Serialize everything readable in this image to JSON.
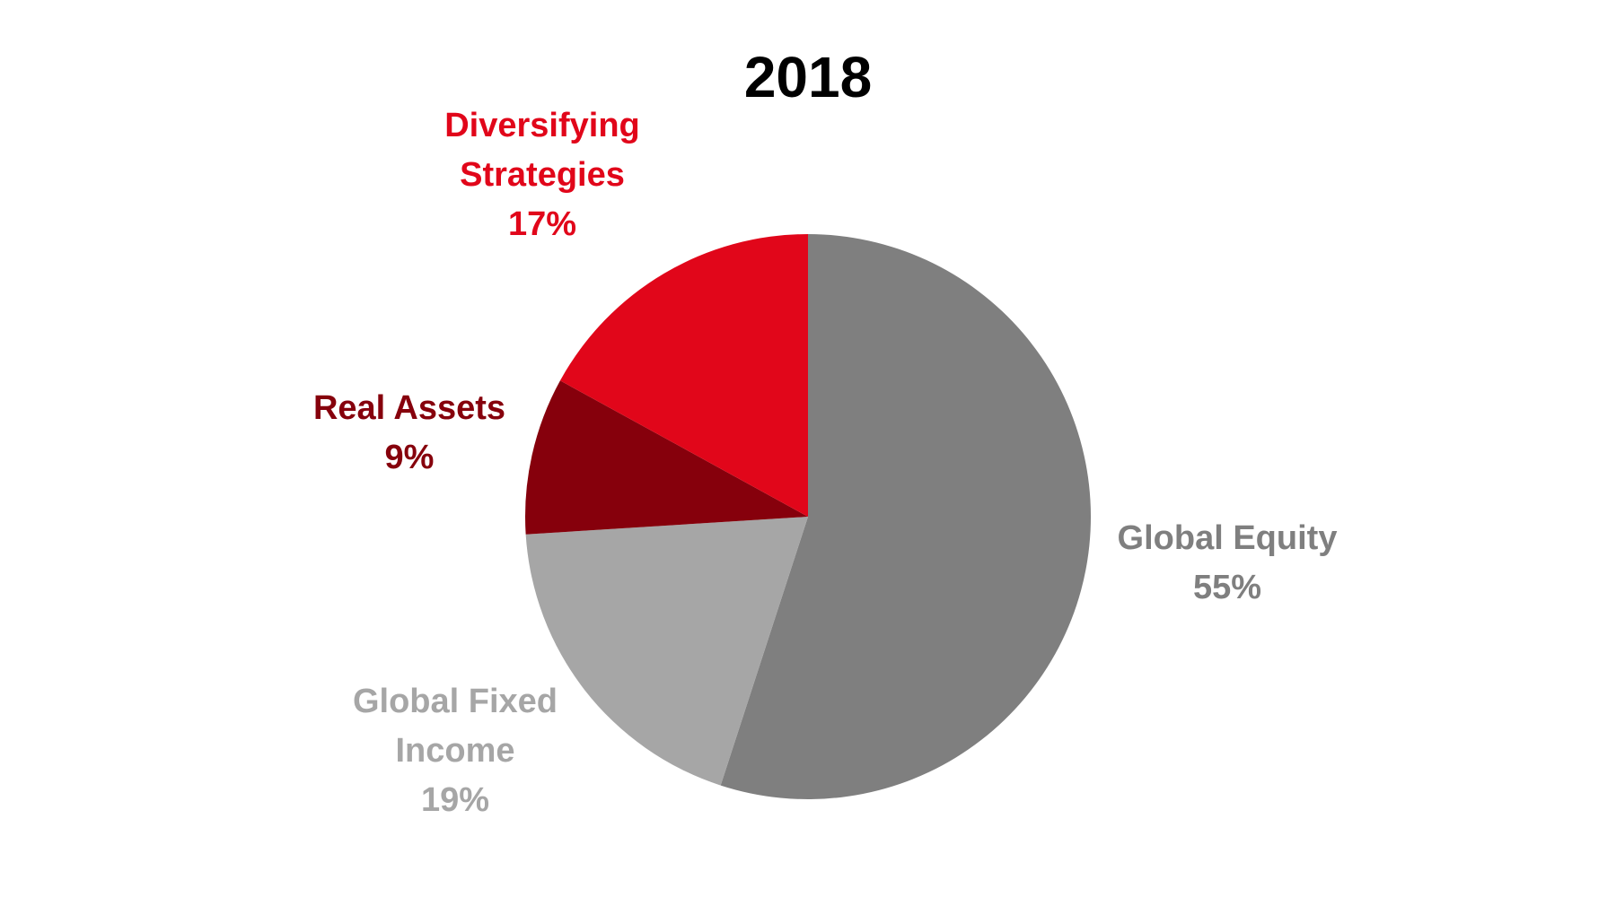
{
  "chart_data": {
    "type": "pie",
    "title": "2018",
    "slices": [
      {
        "label_lines": [
          "Global Equity"
        ],
        "value": 55,
        "value_label": "55%",
        "color": "#7f7f7f",
        "text_color": "#7f7f7f"
      },
      {
        "label_lines": [
          "Global Fixed",
          "Income"
        ],
        "value": 19,
        "value_label": "19%",
        "color": "#a6a6a6",
        "text_color": "#a6a6a6"
      },
      {
        "label_lines": [
          "Real Assets"
        ],
        "value": 9,
        "value_label": "9%",
        "color": "#86000c",
        "text_color": "#86000c"
      },
      {
        "label_lines": [
          "Diversifying",
          "Strategies"
        ],
        "value": 17,
        "value_label": "17%",
        "color": "#e1061a",
        "text_color": "#e1061a"
      }
    ],
    "start_angle": "12 o'clock",
    "direction": "clockwise",
    "legend": "none"
  }
}
